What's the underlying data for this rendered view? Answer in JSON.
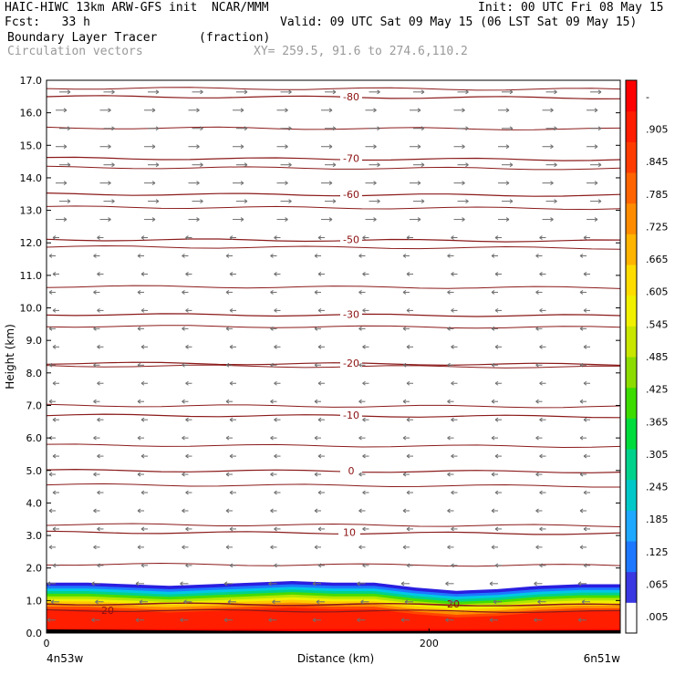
{
  "header": {
    "line1_left": "HAIC-HIWC 13km ARW-GFS init  NCAR/MMM",
    "line1_right": "Init: 00 UTC Fri 08 May 15",
    "line2_left": "Fcst:   33 h",
    "line2_right": "Valid: 09 UTC Sat 09 May 15 (06 LST Sat 09 May 15)",
    "line3_left": "Boundary Layer Tracer",
    "line3_mid": "(fraction)",
    "line4_left": "Circulation vectors",
    "line4_mid": "XY= 259.5, 91.6 to 274.6,110.2"
  },
  "colors": {
    "contour": "#8b1a1a",
    "vector": "#6e6e6e",
    "bl_top": "#1030e0"
  },
  "chart_data": {
    "type": "heatmap",
    "ylabel": "Height (km)",
    "xlabel": "Distance (km)",
    "x_ticks": [
      0,
      200
    ],
    "x_end_labels": [
      "4n53w",
      "6n51w"
    ],
    "xlim": [
      0,
      300
    ],
    "ylim": [
      0,
      17
    ],
    "y_ticks": [
      "0.0",
      "1.0",
      "2.0",
      "3.0",
      "4.0",
      "5.0",
      "6.0",
      "7.0",
      "8.0",
      "9.0",
      "10.0",
      "11.0",
      "12.0",
      "13.0",
      "14.0",
      "15.0",
      "16.0",
      "17.0"
    ],
    "colorbar": {
      "labels": [
        ".005",
        ".065",
        ".125",
        ".185",
        ".245",
        ".305",
        ".365",
        ".425",
        ".485",
        ".545",
        ".605",
        ".665",
        ".725",
        ".785",
        ".845",
        ".905",
        "-"
      ],
      "colors": [
        "#ffffff",
        "#3a38e0",
        "#1e78ff",
        "#1ea8ff",
        "#00c8c8",
        "#00d28c",
        "#00dc3c",
        "#3cdc00",
        "#8cdc00",
        "#c8e600",
        "#f0f000",
        "#ffdc00",
        "#ffb400",
        "#ff8c00",
        "#ff6400",
        "#ff3c00",
        "#ff1e00",
        "#ff0000"
      ]
    },
    "contours": [
      {
        "label": "-80",
        "height_km": 16.5
      },
      {
        "label": "-70",
        "height_km": 14.6
      },
      {
        "label": "-60",
        "height_km": 13.5
      },
      {
        "label": "-50",
        "height_km": 12.1
      },
      {
        "label": "-30",
        "height_km": 9.8
      },
      {
        "label": "-20",
        "height_km": 8.3
      },
      {
        "label": "-10",
        "height_km": 6.7
      },
      {
        "label": "0",
        "height_km": 5.0
      },
      {
        "label": "10",
        "height_km": 3.1
      },
      {
        "label": "20",
        "height_km": 0.7
      },
      {
        "label": "20",
        "height_km": 0.9
      }
    ],
    "bl_top_km": [
      1.55,
      1.55,
      1.5,
      1.45,
      1.5,
      1.55,
      1.6,
      1.55,
      1.55,
      1.4,
      1.3,
      1.35,
      1.45,
      1.5,
      1.5
    ]
  }
}
